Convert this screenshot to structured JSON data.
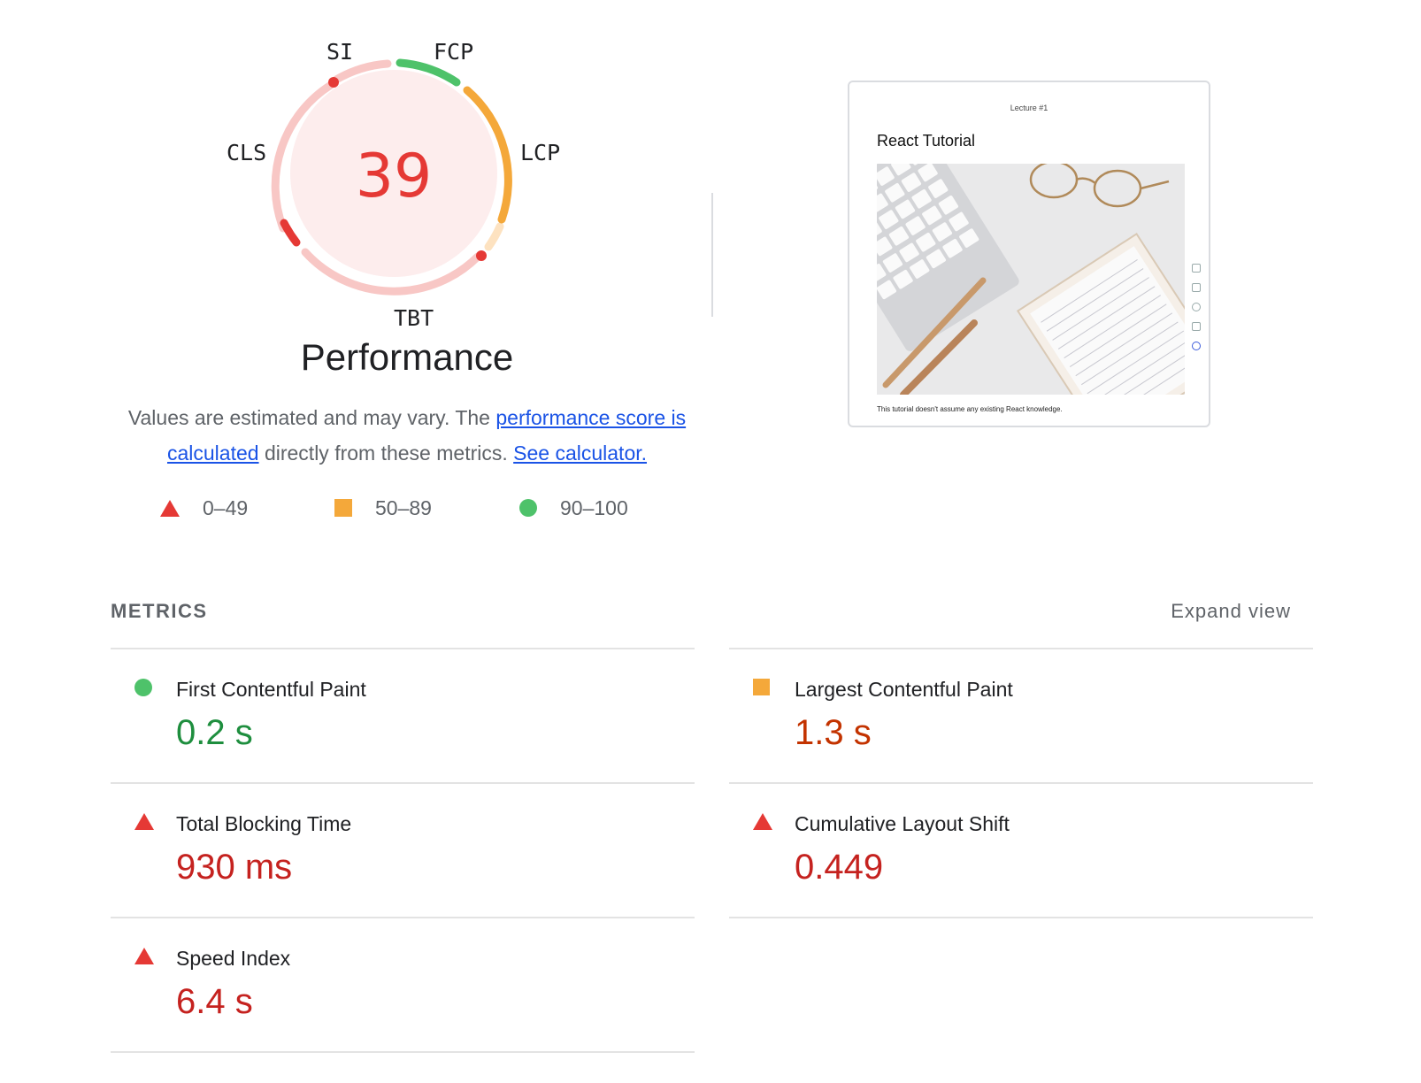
{
  "gauge": {
    "score": "39",
    "labels": {
      "si": "SI",
      "fcp": "FCP",
      "lcp": "LCP",
      "cls": "CLS",
      "tbt": "TBT"
    },
    "colors": {
      "fail": "#e53935",
      "fail_light": "#f8c7c5",
      "average": "#f4a83a",
      "average_light": "#fde2c0",
      "pass": "#4ec26a",
      "fill": "#fdeded"
    }
  },
  "performance_title": "Performance",
  "description": {
    "text1": "Values are estimated and may vary. The ",
    "link1": "performance score is calculated",
    "text2": " directly from these metrics. ",
    "link2": "See calculator."
  },
  "legend": [
    {
      "icon": "fail-triangle-icon",
      "label": "0–49"
    },
    {
      "icon": "average-square-icon",
      "label": "50–89"
    },
    {
      "icon": "pass-circle-icon",
      "label": "90–100"
    }
  ],
  "screenshot": {
    "header": "Lecture #1",
    "title": "React Tutorial",
    "caption": "This tutorial doesn't assume any existing React knowledge."
  },
  "metrics_section": {
    "title": "METRICS",
    "expand_label": "Expand view",
    "items": [
      {
        "name": "First Contentful Paint",
        "value": "0.2 s",
        "rating": "pass"
      },
      {
        "name": "Largest Contentful Paint",
        "value": "1.3 s",
        "rating": "average"
      },
      {
        "name": "Total Blocking Time",
        "value": "930 ms",
        "rating": "fail"
      },
      {
        "name": "Cumulative Layout Shift",
        "value": "0.449",
        "rating": "fail"
      },
      {
        "name": "Speed Index",
        "value": "6.4 s",
        "rating": "fail"
      }
    ]
  }
}
